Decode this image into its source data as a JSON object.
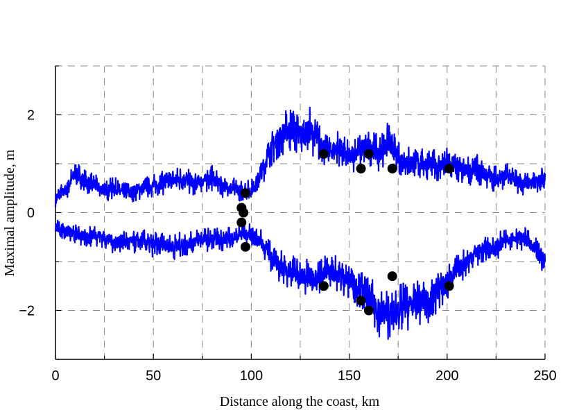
{
  "chart_data": {
    "type": "line",
    "xlabel": "Distance along the coast, km",
    "ylabel": "Maximal amplitude, m",
    "xlim": [
      0,
      250
    ],
    "ylim": [
      -3,
      3
    ],
    "xticks": [
      0,
      50,
      100,
      150,
      200,
      250
    ],
    "xtick_labels": [
      "0",
      "50",
      "100",
      "150",
      "200",
      "250"
    ],
    "yticks": [
      -2,
      0,
      2
    ],
    "ytick_labels": [
      "−2",
      "0",
      "2"
    ],
    "grid": "dashed",
    "line_color": "#0000ff",
    "marker_color": "#000000",
    "series": [
      {
        "type": "line",
        "x": [
          0,
          5,
          10,
          15,
          20,
          25,
          30,
          35,
          40,
          45,
          50,
          55,
          60,
          65,
          70,
          75,
          80,
          85,
          90,
          95,
          100,
          105,
          110,
          115,
          120,
          125,
          130,
          135,
          140,
          145,
          150,
          155,
          160,
          165,
          170,
          175,
          180,
          185,
          190,
          195,
          200,
          205,
          210,
          215,
          220,
          225,
          230,
          235,
          240,
          245,
          250
        ],
        "y": [
          0.3,
          0.45,
          0.8,
          0.65,
          0.55,
          0.45,
          0.5,
          0.4,
          0.45,
          0.5,
          0.55,
          0.6,
          0.65,
          0.7,
          0.6,
          0.65,
          0.7,
          0.55,
          0.5,
          0.45,
          0.45,
          0.8,
          1.3,
          1.6,
          1.7,
          1.55,
          1.7,
          1.4,
          1.25,
          1.35,
          1.1,
          1.3,
          1.35,
          1.2,
          1.45,
          1.1,
          1.05,
          1.0,
          1.0,
          0.95,
          1.0,
          0.9,
          0.85,
          0.9,
          0.75,
          0.7,
          0.75,
          0.65,
          0.6,
          0.6,
          0.8
        ]
      },
      {
        "type": "line",
        "x": [
          0,
          5,
          10,
          15,
          20,
          25,
          30,
          35,
          40,
          45,
          50,
          55,
          60,
          65,
          70,
          75,
          80,
          85,
          90,
          95,
          100,
          105,
          110,
          115,
          120,
          125,
          130,
          135,
          140,
          145,
          150,
          155,
          160,
          165,
          170,
          175,
          180,
          185,
          190,
          195,
          200,
          205,
          210,
          215,
          220,
          225,
          230,
          235,
          240,
          245,
          250
        ],
        "y": [
          -0.3,
          -0.35,
          -0.45,
          -0.5,
          -0.45,
          -0.5,
          -0.6,
          -0.6,
          -0.6,
          -0.6,
          -0.65,
          -0.65,
          -0.7,
          -0.65,
          -0.6,
          -0.55,
          -0.55,
          -0.55,
          -0.5,
          -0.45,
          -0.45,
          -0.6,
          -0.9,
          -1.1,
          -1.2,
          -1.3,
          -1.35,
          -1.3,
          -1.2,
          -1.25,
          -1.4,
          -1.5,
          -1.8,
          -2.0,
          -2.1,
          -2.0,
          -1.9,
          -1.85,
          -1.8,
          -1.6,
          -1.4,
          -1.2,
          -1.0,
          -0.8,
          -0.75,
          -0.7,
          -0.55,
          -0.5,
          -0.55,
          -0.8,
          -1.0
        ]
      },
      {
        "type": "scatter",
        "x": [
          95,
          95,
          96,
          97,
          97,
          137,
          137,
          156,
          156,
          160,
          160,
          172,
          172,
          201,
          201
        ],
        "y": [
          0.1,
          -0.2,
          0.0,
          0.4,
          -0.7,
          1.2,
          -1.5,
          0.9,
          -1.8,
          1.2,
          -2.0,
          0.9,
          -1.3,
          0.9,
          -1.5
        ]
      }
    ]
  }
}
